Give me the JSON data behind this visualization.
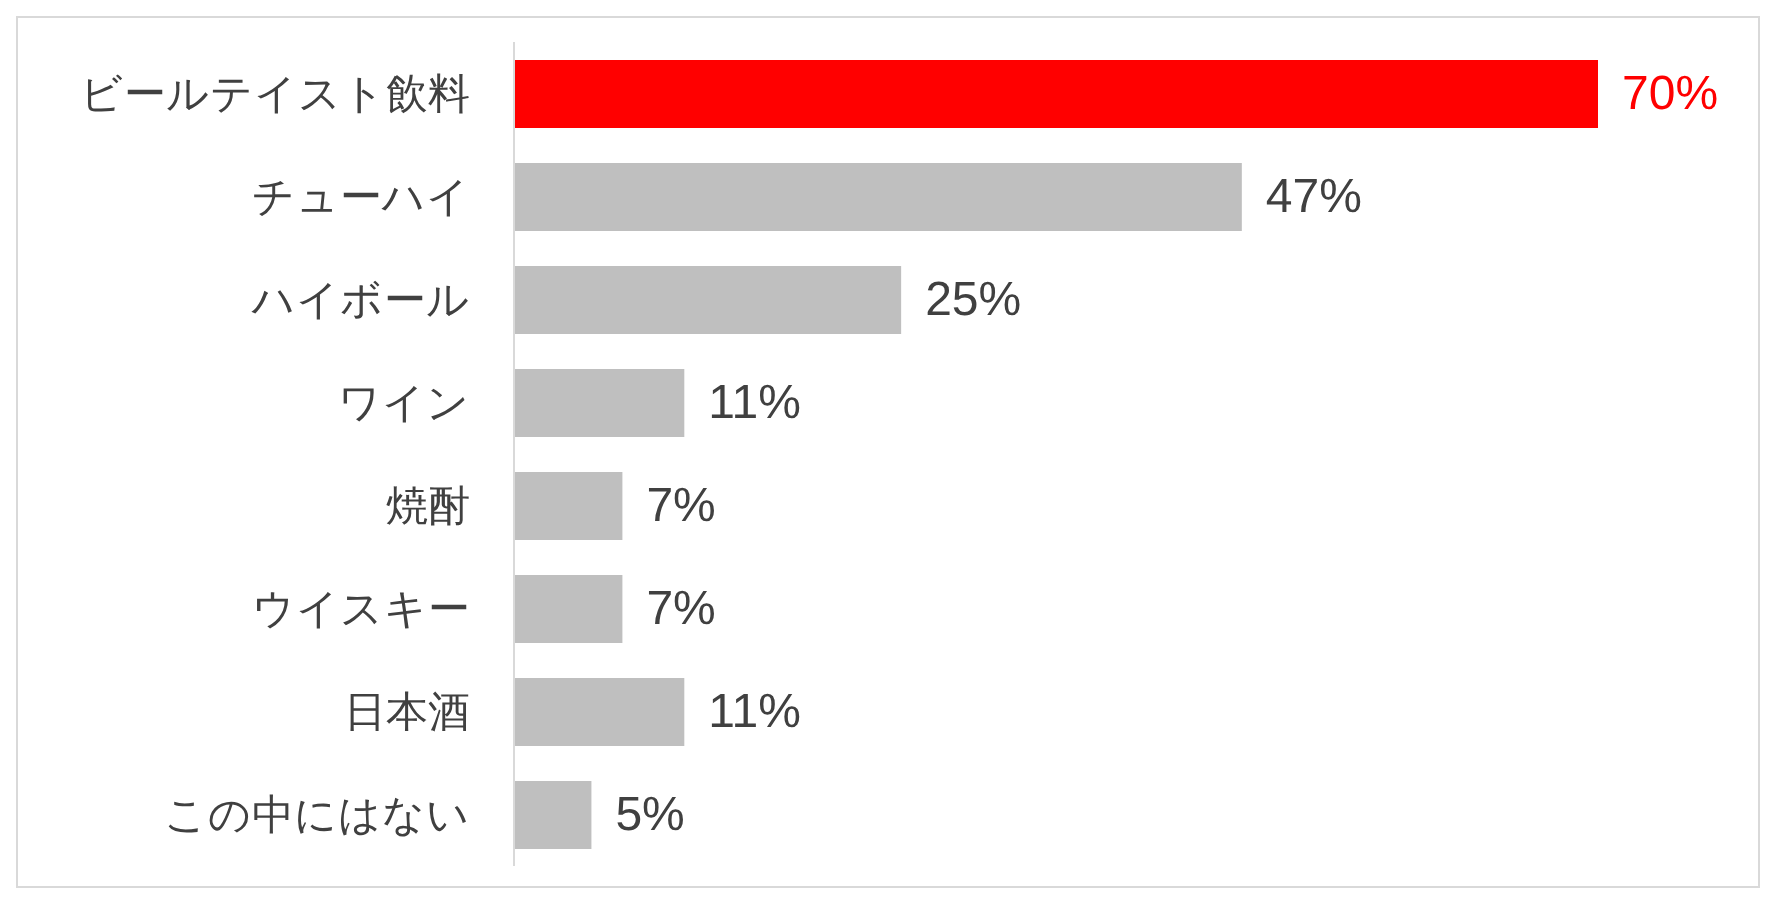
{
  "chart_data": {
    "type": "bar",
    "orientation": "horizontal",
    "categories": [
      "ビールテイスト飲料",
      "チューハイ",
      "ハイボール",
      "ワイン",
      "焼酎",
      "ウイスキー",
      "日本酒",
      "この中にはない"
    ],
    "values": [
      70,
      47,
      25,
      11,
      7,
      7,
      11,
      5
    ],
    "colors": [
      "#ff0000",
      "#bfbfbf",
      "#bfbfbf",
      "#bfbfbf",
      "#bfbfbf",
      "#bfbfbf",
      "#bfbfbf",
      "#bfbfbf"
    ],
    "value_labels": [
      "70%",
      "47%",
      "25%",
      "11%",
      "7%",
      "7%",
      "11%",
      "5%"
    ],
    "grid": false,
    "legend": false
  }
}
